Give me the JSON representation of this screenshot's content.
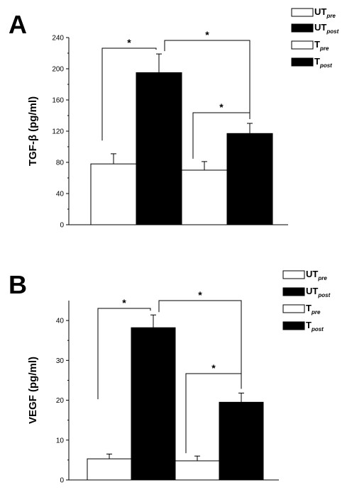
{
  "chart_data": [
    {
      "type": "bar",
      "panel_label": "A",
      "ylabel": "TGF-β (pg/ml)",
      "ylim": [
        0,
        240
      ],
      "yticks": [
        0,
        40,
        80,
        120,
        160,
        200,
        240
      ],
      "series": [
        {
          "name": "UT",
          "sub": "pre",
          "color": "#ffffff",
          "value": 78,
          "error": 13
        },
        {
          "name": "UT",
          "sub": "post",
          "color": "#000000",
          "value": 195,
          "error": 24
        },
        {
          "name": "T",
          "sub": "pre",
          "color": "#ffffff",
          "value": 70,
          "error": 11
        },
        {
          "name": "T",
          "sub": "post",
          "color": "#000000",
          "value": 117,
          "error": 13
        }
      ],
      "significance": [
        {
          "from": 0,
          "to": 1,
          "label": "*"
        },
        {
          "from": 1,
          "to": 3,
          "label": "*"
        },
        {
          "from": 2,
          "to": 3,
          "label": "*"
        }
      ],
      "legend_position": "top-right",
      "grid": false
    },
    {
      "type": "bar",
      "panel_label": "B",
      "ylabel": "VEGF (pg/ml)",
      "ylim": [
        0,
        45
      ],
      "yticks": [
        0,
        10,
        20,
        30,
        40
      ],
      "series": [
        {
          "name": "UT",
          "sub": "pre",
          "color": "#ffffff",
          "value": 5.3,
          "error": 1.2
        },
        {
          "name": "UT",
          "sub": "post",
          "color": "#000000",
          "value": 38.2,
          "error": 3.2
        },
        {
          "name": "T",
          "sub": "pre",
          "color": "#ffffff",
          "value": 4.8,
          "error": 1.2
        },
        {
          "name": "T",
          "sub": "post",
          "color": "#000000",
          "value": 19.5,
          "error": 2.3
        }
      ],
      "significance": [
        {
          "from": 0,
          "to": 1,
          "label": "*"
        },
        {
          "from": 1,
          "to": 3,
          "label": "*"
        },
        {
          "from": 2,
          "to": 3,
          "label": "*"
        }
      ],
      "legend_position": "top-right",
      "grid": false
    }
  ]
}
